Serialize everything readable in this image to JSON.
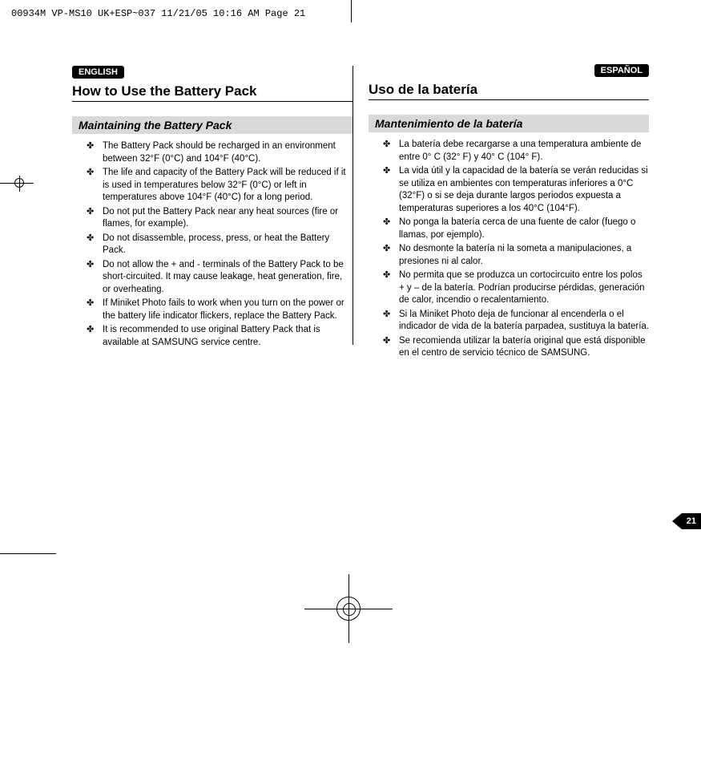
{
  "meta_header": "00934M VP-MS10 UK+ESP~037  11/21/05 10:16 AM  Page 21",
  "page_number": "21",
  "left": {
    "lang_badge": "ENGLISH",
    "title": "How to Use the Battery Pack",
    "subheading": "Maintaining the Battery Pack",
    "bullets": [
      "The Battery Pack should be recharged in an environment between 32°F (0°C) and 104°F (40°C).",
      "The life and capacity of the Battery Pack will be reduced if it is used in temperatures below 32°F (0°C) or left in temperatures above 104°F (40°C) for a long period.",
      "Do not put the Battery Pack near any heat sources (fire or flames, for example).",
      "Do not disassemble, process, press, or heat the Battery Pack.",
      "Do not allow the + and - terminals of the Battery Pack to be short-circuited. It may cause leakage, heat generation, fire, or overheating.",
      "If Miniket Photo fails to work when you turn on the power or the battery life indicator flickers, replace the Battery Pack.",
      "It is recommended to use original Battery Pack that is available at SAMSUNG service centre."
    ]
  },
  "right": {
    "lang_badge": "ESPAÑOL",
    "title": "Uso de la batería",
    "subheading": "Mantenimiento de la batería",
    "bullets": [
      "La batería debe recargarse a una temperatura ambiente de entre 0° C (32° F) y 40° C (104° F).",
      "La vida útil y la capacidad de la batería se verán reducidas si se utiliza en ambientes con temperaturas inferiores a 0°C (32°F) o si se deja durante largos periodos expuesta a temperaturas superiores a los 40°C (104°F).",
      "No ponga la batería cerca de una fuente de calor (fuego o llamas, por ejemplo).",
      "No desmonte la batería ni la someta a manipulaciones, a presiones ni al calor.",
      "No permita que se produzca un cortocircuito entre los polos + y – de la batería. Podrían producirse pérdidas, generación de calor, incendio o recalentamiento.",
      "Si la Miniket Photo deja de funcionar al encenderla o el indicador de vida de la batería parpadea, sustituya la batería.",
      "Se recomienda utilizar la batería original que está disponible en el centro de servicio técnico de SAMSUNG."
    ]
  }
}
